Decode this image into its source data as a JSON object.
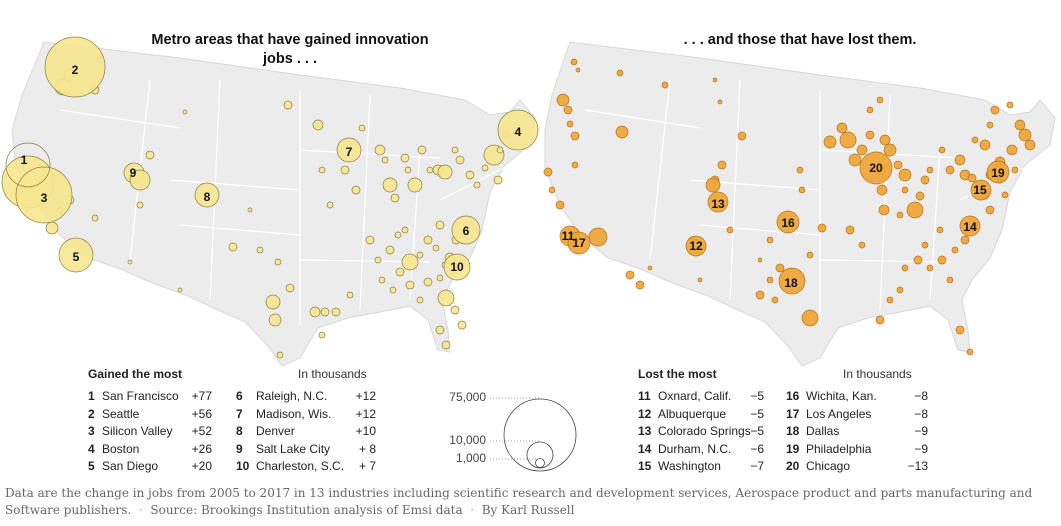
{
  "titles": {
    "left": "Metro areas that have gained innovation jobs . . .",
    "right": ". . . and those that have lost them."
  },
  "gained": {
    "heading": "Gained the most",
    "unit": "In thousands",
    "items": [
      {
        "rank": "1",
        "city": "San Francisco",
        "value": "+77"
      },
      {
        "rank": "2",
        "city": "Seattle",
        "value": "+56"
      },
      {
        "rank": "3",
        "city": "Silicon Valley",
        "value": "+52"
      },
      {
        "rank": "4",
        "city": "Boston",
        "value": "+26"
      },
      {
        "rank": "5",
        "city": "San Diego",
        "value": "+20"
      },
      {
        "rank": "6",
        "city": "Raleigh, N.C.",
        "value": "+12"
      },
      {
        "rank": "7",
        "city": "Madison, Wis.",
        "value": "+12"
      },
      {
        "rank": "8",
        "city": "Denver",
        "value": "+10"
      },
      {
        "rank": "9",
        "city": "Salt Lake City",
        "value": "+ 8"
      },
      {
        "rank": "10",
        "city": "Charleston, S.C.",
        "value": "+ 7"
      }
    ]
  },
  "lost": {
    "heading": "Lost the most",
    "unit": "In thousands",
    "items": [
      {
        "rank": "11",
        "city": "Oxnard, Calif.",
        "value": "−5"
      },
      {
        "rank": "12",
        "city": "Albuquerque",
        "value": "−5"
      },
      {
        "rank": "13",
        "city": "Colorado Springs",
        "value": "−5"
      },
      {
        "rank": "14",
        "city": "Durham, N.C.",
        "value": "−6"
      },
      {
        "rank": "15",
        "city": "Washington",
        "value": "−7"
      },
      {
        "rank": "16",
        "city": "Wichita, Kan.",
        "value": "−8"
      },
      {
        "rank": "17",
        "city": "Los Angeles",
        "value": "−8"
      },
      {
        "rank": "18",
        "city": "Dallas",
        "value": "−9"
      },
      {
        "rank": "19",
        "city": "Philadelphia",
        "value": "−9"
      },
      {
        "rank": "20",
        "city": "Chicago",
        "value": "−13"
      }
    ]
  },
  "size_legend": {
    "labels": [
      "75,000",
      "10,000",
      "1,000"
    ],
    "values": [
      75000,
      10000,
      1000
    ]
  },
  "footnote": {
    "text": "Data are the change in jobs from 2005 to 2017 in 13 industries including scientific research and development services, Aerospace product and parts manufacturing and Software publishers.",
    "source": "Source: Brookings Institution analysis of Emsi data",
    "credit": "By Karl Russell"
  },
  "colors": {
    "land": "#ececec",
    "state_border": "#ffffff",
    "gain_fill": "#f6e58f",
    "gain_stroke": "#8a7f45",
    "loss_fill": "#f0a332",
    "loss_stroke": "#b4741a",
    "legend_stroke": "#444444"
  },
  "map_markers": {
    "gained_labels": [
      "1",
      "2",
      "3",
      "4",
      "5",
      "6",
      "7",
      "8",
      "9",
      "10"
    ],
    "lost_labels": [
      "11",
      "12",
      "13",
      "14",
      "15",
      "16",
      "17",
      "18",
      "19",
      "20"
    ]
  }
}
